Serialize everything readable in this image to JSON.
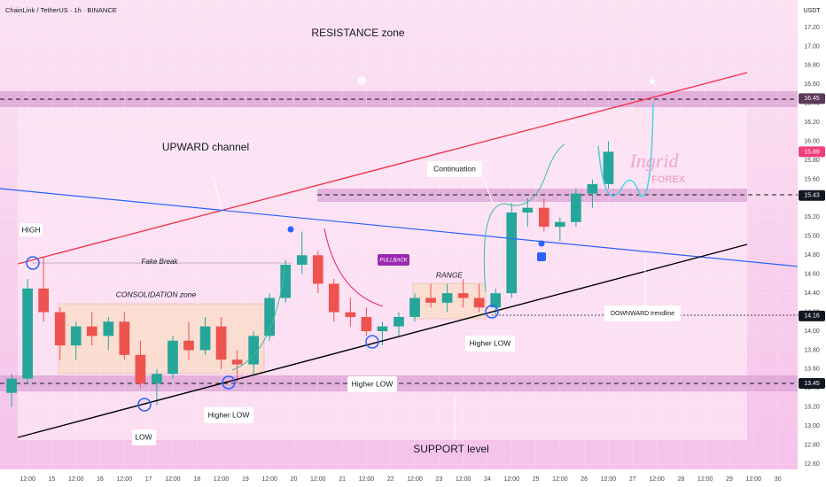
{
  "chart_data": {
    "type": "candlestick",
    "symbol": "ChainLink / TetherUS · 1h · BINANCE",
    "currency": "USDT",
    "up_color": "#26a69a",
    "down_color": "#ef5350",
    "xlim": [
      13.93,
      30.41
    ],
    "ylim": [
      12.545,
      17.489
    ],
    "x": [
      14.17,
      14.5,
      14.83,
      15.17,
      15.5,
      15.83,
      16.17,
      16.5,
      16.83,
      17.17,
      17.5,
      17.83,
      18.17,
      18.5,
      18.83,
      19.17,
      19.5,
      19.83,
      20.17,
      20.5,
      20.83,
      21.17,
      21.5,
      21.83,
      22.17,
      22.5,
      22.83,
      23.17,
      23.5,
      23.83,
      24.17,
      24.5,
      24.83,
      25.17,
      25.5,
      25.83,
      26.17,
      26.5
    ],
    "open": [
      13.35,
      13.5,
      14.45,
      14.2,
      13.85,
      14.05,
      13.95,
      14.1,
      13.75,
      13.45,
      13.55,
      13.9,
      13.8,
      14.05,
      13.7,
      13.65,
      13.95,
      14.35,
      14.7,
      14.8,
      14.5,
      14.2,
      14.15,
      14.0,
      14.05,
      14.15,
      14.35,
      14.3,
      14.4,
      14.35,
      14.25,
      14.4,
      15.25,
      15.3,
      15.1,
      15.15,
      15.45,
      15.55
    ],
    "high": [
      13.55,
      14.55,
      14.78,
      14.25,
      14.1,
      14.2,
      14.15,
      14.2,
      13.9,
      13.6,
      13.95,
      14.1,
      14.15,
      14.15,
      13.8,
      14.0,
      14.4,
      14.75,
      15.05,
      14.85,
      14.55,
      14.35,
      14.25,
      14.1,
      14.2,
      14.4,
      14.5,
      14.5,
      14.55,
      14.5,
      14.45,
      15.35,
      15.4,
      15.4,
      15.2,
      15.5,
      15.6,
      16.0
    ],
    "low": [
      13.2,
      13.45,
      14.1,
      13.7,
      13.7,
      13.85,
      13.8,
      13.7,
      13.4,
      13.22,
      13.5,
      13.7,
      13.75,
      13.6,
      13.45,
      13.55,
      13.9,
      14.3,
      14.6,
      14.4,
      14.1,
      14.05,
      13.95,
      13.85,
      13.95,
      14.1,
      14.25,
      14.2,
      14.25,
      14.2,
      14.16,
      14.35,
      15.1,
      15.05,
      14.95,
      15.1,
      15.3,
      15.5
    ],
    "close": [
      13.5,
      14.45,
      14.2,
      13.85,
      14.05,
      13.95,
      14.1,
      13.75,
      13.45,
      13.55,
      13.9,
      13.8,
      14.05,
      13.7,
      13.65,
      13.95,
      14.35,
      14.7,
      14.8,
      14.5,
      14.2,
      14.15,
      14.0,
      14.05,
      14.15,
      14.35,
      14.3,
      14.4,
      14.35,
      14.25,
      14.4,
      15.25,
      15.3,
      15.1,
      15.15,
      15.45,
      15.55,
      15.89
    ],
    "xticks": [
      {
        "value": 14.5,
        "label": "12:00"
      },
      15,
      {
        "value": 15.5,
        "label": "12:00"
      },
      16,
      {
        "value": 16.5,
        "label": "12:00"
      },
      17,
      {
        "value": 17.5,
        "label": "12:00"
      },
      18,
      {
        "value": 18.5,
        "label": "12:00"
      },
      19,
      {
        "value": 19.5,
        "label": "12:00"
      },
      20,
      {
        "value": 20.5,
        "label": "12:00"
      },
      21,
      {
        "value": 21.5,
        "label": "12:00"
      },
      22,
      {
        "value": 22.5,
        "label": "12:00"
      },
      23,
      {
        "value": 23.5,
        "label": "12:00"
      },
      24,
      {
        "value": 24.5,
        "label": "12:00"
      },
      25,
      {
        "value": 25.5,
        "label": "12:00"
      },
      26,
      {
        "value": 26.5,
        "label": "12:00"
      },
      27,
      {
        "value": 27.5,
        "label": "12:00"
      },
      28,
      {
        "value": 28.5,
        "label": "12:00"
      },
      29,
      {
        "value": 29.5,
        "label": "12:00"
      },
      30
    ],
    "yticks": [
      {
        "value": 12.6,
        "label": "12.60"
      },
      {
        "value": 12.8,
        "label": "12.80"
      },
      {
        "value": 13,
        "label": "13.00"
      },
      {
        "value": 13.2,
        "label": "13.20"
      },
      {
        "value": 13.4,
        "label": "13.40"
      },
      {
        "value": 13.6,
        "label": "13.60"
      },
      {
        "value": 13.8,
        "label": "13.80"
      },
      {
        "value": 14,
        "label": "14.00"
      },
      {
        "value": 14.2,
        "label": "14.20"
      },
      {
        "value": 14.4,
        "label": "14.40"
      },
      {
        "value": 14.6,
        "label": "14.60"
      },
      {
        "value": 14.8,
        "label": "14.80"
      },
      {
        "value": 15,
        "label": "15.00"
      },
      {
        "value": 15.2,
        "label": "15.20"
      },
      {
        "value": 15.4,
        "label": "15.40"
      },
      {
        "value": 15.6,
        "label": "15.60"
      },
      {
        "value": 15.8,
        "label": "15.80"
      },
      {
        "value": 16,
        "label": "16.00"
      },
      {
        "value": 16.2,
        "label": "16.20"
      },
      {
        "value": 16.4,
        "label": "16.40"
      },
      {
        "value": 16.6,
        "label": "16.60"
      },
      {
        "value": 16.8,
        "label": "16.80"
      },
      {
        "value": 17,
        "label": "17.00"
      },
      {
        "value": 17.2,
        "label": "17.20"
      }
    ],
    "price_labels": [
      {
        "value": 16.45,
        "label": "16.45",
        "color": "#5b3a59"
      },
      {
        "value": 15.89,
        "label": "15.89",
        "color": "#f23d79"
      },
      {
        "value": 15.43,
        "label": "15.43",
        "color": "#131722"
      },
      {
        "value": 14.16,
        "label": "14.16",
        "color": "#131722"
      },
      {
        "value": 13.45,
        "label": "13.45",
        "color": "#131722"
      }
    ],
    "annotations": {
      "resistance": "RESISTANCE zone",
      "channel": "UPWARD channel",
      "high": "HIGH",
      "fake_break": "Fake Break",
      "consolidation": "CONSOLIDATION zone",
      "pullback": "PULLBACK",
      "range": "RANGE",
      "continuation": "Continuation",
      "low": "LOW",
      "higher_low": [
        "Higher LOW",
        "Higher LOW",
        "Higher LOW",
        "Higher LOW"
      ],
      "downward": "DOWNWARD trendline",
      "support": "SUPPORT level",
      "logo": "Ingrid",
      "logo_sub": "FOREX"
    }
  }
}
